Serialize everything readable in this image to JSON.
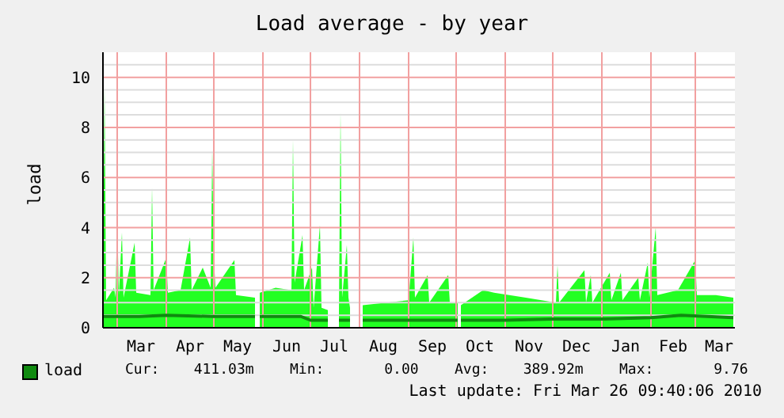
{
  "chart_data": {
    "type": "area",
    "title": "Load average - by year",
    "ylabel": "load",
    "xlim": [
      "2009-02-20",
      "2010-03-26"
    ],
    "xticks": [
      {
        "value": "2009-03-01",
        "label": null
      },
      {
        "value": "2009-03-16",
        "label": "Mar"
      },
      {
        "value": "2009-04-01",
        "label": null
      },
      {
        "value": "2009-04-16",
        "label": "Apr"
      },
      {
        "value": "2009-05-01",
        "label": null
      },
      {
        "value": "2009-05-16",
        "label": "May"
      },
      {
        "value": "2009-06-01",
        "label": null
      },
      {
        "value": "2009-06-16",
        "label": "Jun"
      },
      {
        "value": "2009-07-01",
        "label": null
      },
      {
        "value": "2009-07-16",
        "label": "Jul"
      },
      {
        "value": "2009-08-01",
        "label": null
      },
      {
        "value": "2009-08-16",
        "label": "Aug"
      },
      {
        "value": "2009-09-01",
        "label": null
      },
      {
        "value": "2009-09-16",
        "label": "Sep"
      },
      {
        "value": "2009-10-01",
        "label": null
      },
      {
        "value": "2009-10-16",
        "label": "Oct"
      },
      {
        "value": "2009-11-01",
        "label": null
      },
      {
        "value": "2009-11-16",
        "label": "Nov"
      },
      {
        "value": "2009-12-01",
        "label": null
      },
      {
        "value": "2009-12-16",
        "label": "Dec"
      },
      {
        "value": "2010-01-01",
        "label": null
      },
      {
        "value": "2010-01-16",
        "label": "Jan"
      },
      {
        "value": "2010-02-01",
        "label": null
      },
      {
        "value": "2010-02-15",
        "label": "Feb"
      },
      {
        "value": "2010-03-01",
        "label": null
      },
      {
        "value": "2010-03-16",
        "label": "Mar"
      }
    ],
    "ylim": [
      0,
      11
    ],
    "yticks": [
      0,
      {
        "value": 0.5,
        "label": null
      },
      {
        "value": 1,
        "label": null
      },
      {
        "value": 1.5,
        "label": null
      },
      2,
      {
        "value": 2.5,
        "label": null
      },
      {
        "value": 3,
        "label": null
      },
      {
        "value": 3.5,
        "label": null
      },
      4,
      {
        "value": 4.5,
        "label": null
      },
      {
        "value": 5,
        "label": null
      },
      {
        "value": 5.5,
        "label": null
      },
      6,
      {
        "value": 6.5,
        "label": null
      },
      {
        "value": 7,
        "label": null
      },
      {
        "value": 7.5,
        "label": null
      },
      8,
      {
        "value": 8.5,
        "label": null
      },
      {
        "value": 9,
        "label": null
      },
      {
        "value": 9.5,
        "label": null
      },
      10,
      {
        "value": 10.5,
        "label": null
      }
    ],
    "grid": true,
    "legend": "bottom left",
    "series": [
      {
        "color": "#22ff22",
        "x": [
          "2009-02-20",
          "2009-02-21",
          "2009-02-22",
          "2009-02-27",
          "2009-02-28",
          "2009-03-01",
          "2009-03-02",
          "2009-03-04",
          "2009-03-05",
          "2009-03-12",
          "2009-03-13",
          "2009-03-22",
          "2009-03-23",
          "2009-03-24",
          "2009-04-01",
          "2009-04-02",
          "2009-04-10",
          "2009-04-16",
          "2009-04-17",
          "2009-04-24",
          "2009-04-29",
          "2009-04-30",
          "2009-05-01",
          "2009-05-02",
          "2009-05-14",
          "2009-05-15",
          "2009-05-27",
          "2009-05-28",
          "2009-05-30",
          "2009-06-09",
          "2009-06-19",
          "2009-06-20",
          "2009-06-21",
          "2009-06-26",
          "2009-06-27",
          "2009-07-02",
          "2009-07-03",
          "2009-07-07",
          "2009-07-08",
          "2009-07-12",
          "2009-07-13",
          "2009-07-19",
          "2009-07-20",
          "2009-07-21",
          "2009-07-24",
          "2009-07-25",
          "2009-07-26",
          "2009-07-27",
          "2009-08-03",
          "2009-08-18",
          "2009-09-01",
          "2009-09-04",
          "2009-09-05",
          "2009-09-13",
          "2009-09-14",
          "2009-09-26",
          "2009-09-27",
          "2009-10-02",
          "2009-10-03",
          "2009-10-04",
          "2009-10-18",
          "2009-10-25",
          "2009-11-14",
          "2009-12-03",
          "2009-12-04",
          "2009-12-05",
          "2009-12-21",
          "2009-12-22",
          "2009-12-25",
          "2009-12-26",
          "2010-01-06",
          "2010-01-07",
          "2010-01-13",
          "2010-01-14",
          "2010-01-24",
          "2010-01-25",
          "2010-01-30",
          "2010-01-31",
          "2010-02-04",
          "2010-02-05",
          "2010-02-18",
          "2010-03-01",
          "2010-03-02",
          "2010-03-14",
          "2010-03-25"
        ],
        "values": [
          0.8,
          9.7,
          1.1,
          1.6,
          1.2,
          4.6,
          1.3,
          3.8,
          1.2,
          3.4,
          1.4,
          1.3,
          5.6,
          1.5,
          2.8,
          1.4,
          1.5,
          3.6,
          1.5,
          2.4,
          1.6,
          7.1,
          2.8,
          1.6,
          2.7,
          1.3,
          1.2,
          null,
          1.4,
          1.6,
          1.5,
          7.5,
          1.8,
          3.7,
          1.5,
          2.4,
          0.8,
          4.1,
          0.8,
          0.7,
          null,
          0.6,
          8.6,
          1.2,
          3.3,
          1.2,
          0.8,
          null,
          0.9,
          1.0,
          1.1,
          3.6,
          1.2,
          2.1,
          1.0,
          2.1,
          1.0,
          1.0,
          null,
          0.9,
          1.5,
          1.4,
          1.2,
          1.0,
          2.5,
          1.0,
          2.3,
          1.0,
          2.1,
          1.0,
          2.2,
          1.1,
          2.2,
          1.1,
          2.0,
          1.1,
          2.6,
          1.2,
          4.0,
          1.3,
          1.5,
          2.7,
          1.3,
          1.3,
          1.2
        ]
      },
      {
        "type": "line",
        "name": "load",
        "color": "#108a10",
        "x": [
          "2009-02-20",
          "2009-03-15",
          "2009-04-01",
          "2009-05-01",
          "2009-05-27",
          "2009-05-28",
          "2009-05-30",
          "2009-06-25",
          "2009-07-01",
          "2009-07-12",
          "2009-07-13",
          "2009-07-19",
          "2009-07-26",
          "2009-07-27",
          "2009-08-03",
          "2009-09-01",
          "2009-10-02",
          "2009-10-03",
          "2009-10-04",
          "2009-11-01",
          "2009-12-01",
          "2010-01-01",
          "2010-02-01",
          "2010-02-20",
          "2010-03-25"
        ],
        "values": [
          0.45,
          0.45,
          0.5,
          0.45,
          0.45,
          null,
          0.45,
          0.45,
          0.3,
          0.3,
          null,
          0.3,
          0.3,
          null,
          0.3,
          0.3,
          0.3,
          null,
          0.3,
          0.3,
          0.35,
          0.35,
          0.4,
          0.5,
          0.4
        ]
      }
    ],
    "annotations": [
      "Cur:    411.03m",
      "Min:       0.00",
      "Avg:    389.92m",
      "Max:       9.76",
      "Last update: Fri Mar 26 09:40:06 2010"
    ]
  }
}
